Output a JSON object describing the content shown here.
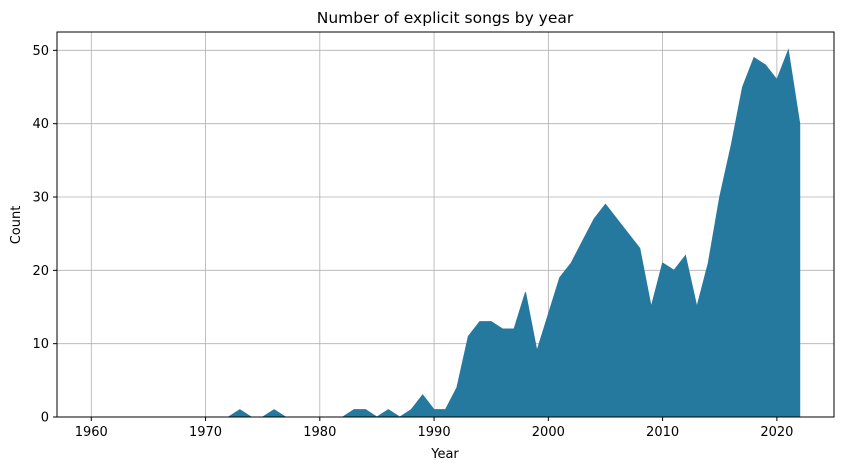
{
  "chart_data": {
    "type": "area",
    "title": "Number of explicit songs by year",
    "xlabel": "Year",
    "ylabel": "Count",
    "xlim": [
      1957,
      2025
    ],
    "ylim": [
      0,
      52.5
    ],
    "xticks": [
      1960,
      1970,
      1980,
      1990,
      2000,
      2010,
      2020
    ],
    "yticks": [
      0,
      10,
      20,
      30,
      40,
      50
    ],
    "grid": true,
    "legend": false,
    "fill_color": "#26799e",
    "series": [
      {
        "x": [
          1960,
          1961,
          1962,
          1963,
          1964,
          1965,
          1966,
          1967,
          1968,
          1969,
          1970,
          1971,
          1972,
          1973,
          1974,
          1975,
          1976,
          1977,
          1978,
          1979,
          1980,
          1981,
          1982,
          1983,
          1984,
          1985,
          1986,
          1987,
          1988,
          1989,
          1990,
          1991,
          1992,
          1993,
          1994,
          1995,
          1996,
          1997,
          1998,
          1999,
          2000,
          2001,
          2002,
          2003,
          2004,
          2005,
          2006,
          2007,
          2008,
          2009,
          2010,
          2011,
          2012,
          2013,
          2014,
          2015,
          2016,
          2017,
          2018,
          2019,
          2020,
          2021,
          2022
        ],
        "values": [
          0,
          0,
          0,
          0,
          0,
          0,
          0,
          0,
          0,
          0,
          0,
          0,
          0,
          1,
          0,
          0,
          1,
          0,
          0,
          0,
          0,
          0,
          0,
          1,
          1,
          0,
          1,
          0,
          1,
          3,
          1,
          1,
          4,
          11,
          13,
          13,
          12,
          12,
          17,
          9,
          14,
          19,
          21,
          24,
          27,
          29,
          27,
          25,
          23,
          15,
          21,
          20,
          22,
          15,
          21,
          30,
          37,
          45,
          49,
          48,
          46,
          50,
          40
        ]
      }
    ]
  }
}
